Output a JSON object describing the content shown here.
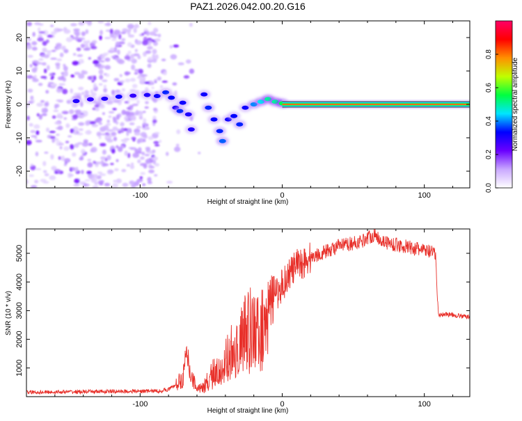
{
  "title": "PAZ1.2026.042.00.20.G16",
  "chart_data": [
    {
      "id": "spectrogram",
      "type": "heatmap",
      "xlabel": "Height of straight line (km)",
      "ylabel": "Frequency (Hz)",
      "xlim": [
        -180,
        132
      ],
      "ylim": [
        -25,
        25
      ],
      "x_ticks": [
        -100,
        0,
        100
      ],
      "x_tick_labels": [
        "-100",
        "0",
        "100"
      ],
      "y_ticks": [
        -20,
        -10,
        0,
        10,
        20
      ],
      "y_tick_labels": [
        "-20",
        "-10",
        "0",
        "10",
        "20"
      ],
      "noise_region_x": [
        -180,
        -88
      ],
      "main_trace": [
        {
          "x": -145,
          "y": 1.0,
          "a": 0.3
        },
        {
          "x": -135,
          "y": 1.5,
          "a": 0.28
        },
        {
          "x": -125,
          "y": 1.7,
          "a": 0.3
        },
        {
          "x": -115,
          "y": 2.3,
          "a": 0.32
        },
        {
          "x": -105,
          "y": 2.6,
          "a": 0.28
        },
        {
          "x": -95,
          "y": 2.8,
          "a": 0.3
        },
        {
          "x": -88,
          "y": 2.5,
          "a": 0.32
        },
        {
          "x": -82,
          "y": 3.6,
          "a": 0.35
        },
        {
          "x": -78,
          "y": 2.0,
          "a": 0.33
        },
        {
          "x": -75,
          "y": -1.0,
          "a": 0.3
        },
        {
          "x": -72,
          "y": -2.0,
          "a": 0.35
        },
        {
          "x": -70,
          "y": 0.5,
          "a": 0.32
        },
        {
          "x": -66,
          "y": -3.0,
          "a": 0.3
        },
        {
          "x": -64,
          "y": -7.5,
          "a": 0.3
        },
        {
          "x": -55,
          "y": 3.0,
          "a": 0.32
        },
        {
          "x": -52,
          "y": -1.0,
          "a": 0.35
        },
        {
          "x": -48,
          "y": -4.5,
          "a": 0.33
        },
        {
          "x": -44,
          "y": -8.0,
          "a": 0.35
        },
        {
          "x": -42,
          "y": -11.0,
          "a": 0.38
        },
        {
          "x": -38,
          "y": -4.5,
          "a": 0.32
        },
        {
          "x": -34,
          "y": -3.5,
          "a": 0.33
        },
        {
          "x": -30,
          "y": -6.0,
          "a": 0.35
        },
        {
          "x": -26,
          "y": -1.0,
          "a": 0.32
        },
        {
          "x": -20,
          "y": 0.0,
          "a": 0.4
        },
        {
          "x": -15,
          "y": 0.8,
          "a": 0.45
        },
        {
          "x": -10,
          "y": 1.6,
          "a": 0.5
        },
        {
          "x": -5,
          "y": 0.8,
          "a": 0.5
        },
        {
          "x": 0,
          "y": 0.3,
          "a": 0.55
        }
      ],
      "steady_band": {
        "x_start": 0,
        "x_end": 132,
        "y": 0.0,
        "a": 0.95
      },
      "colorbar": {
        "label": "Normalized spectral amplitude",
        "ticks": [
          0.0,
          0.2,
          0.4,
          0.6,
          0.8
        ],
        "tick_labels": [
          "0.0",
          "0.2",
          "0.4",
          "0.6",
          "0.8"
        ],
        "range": [
          0,
          1
        ],
        "colors": [
          "#ffffff",
          "#c9a8ff",
          "#6a00ff",
          "#0000ff",
          "#00e5ff",
          "#00ff40",
          "#c0ff00",
          "#ff9000",
          "#ff0000",
          "#ff0066"
        ]
      }
    },
    {
      "id": "snr",
      "type": "line",
      "xlabel": "Height of straight line (km)",
      "ylabel": "SNR (10 * v/v)",
      "xlim": [
        -180,
        132
      ],
      "ylim": [
        0,
        5850
      ],
      "x_ticks": [
        -100,
        0,
        100
      ],
      "x_tick_labels": [
        "-100",
        "0",
        "100"
      ],
      "y_ticks": [
        1000,
        2000,
        3000,
        4000,
        5000
      ],
      "y_tick_labels": [
        "1000",
        "2000",
        "3000",
        "4000",
        "5000"
      ],
      "color": "#e8302a",
      "series": [
        {
          "name": "SNR",
          "x": [
            -180,
            -160,
            -140,
            -120,
            -100,
            -85,
            -80,
            -75,
            -70,
            -67,
            -65,
            -62,
            -60,
            -57,
            -55,
            -50,
            -45,
            -40,
            -35,
            -30,
            -25,
            -20,
            -15,
            -10,
            -5,
            0,
            5,
            10,
            15,
            20,
            25,
            30,
            35,
            40,
            45,
            50,
            55,
            60,
            65,
            70,
            75,
            80,
            85,
            90,
            95,
            100,
            104,
            108,
            109,
            110,
            115,
            120,
            125,
            132
          ],
          "y": [
            150,
            160,
            170,
            180,
            190,
            200,
            260,
            400,
            650,
            1400,
            900,
            500,
            350,
            300,
            380,
            800,
            1000,
            1300,
            1700,
            2100,
            2400,
            2700,
            2900,
            3200,
            3500,
            3900,
            4300,
            4550,
            4700,
            4850,
            4950,
            5050,
            5150,
            5250,
            5300,
            5350,
            5400,
            5550,
            5650,
            5450,
            5350,
            5300,
            5250,
            5200,
            5150,
            5100,
            5050,
            4950,
            3600,
            2850,
            2880,
            2850,
            2820,
            2780
          ]
        }
      ]
    }
  ]
}
